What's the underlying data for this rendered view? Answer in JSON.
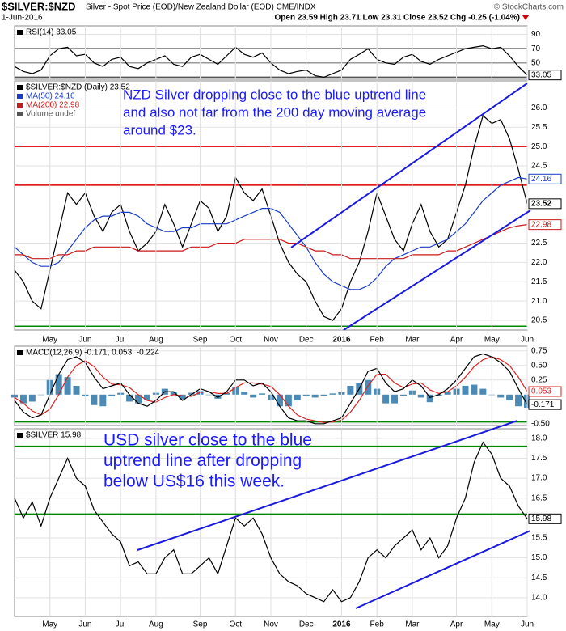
{
  "header": {
    "symbol": "$SILVER:$NZD",
    "description": "Silver - Spot Price (EOD)/New Zealand Dollar (EOD) CME/INDX",
    "credit": "© StockCharts.com",
    "date": "1-Jun-2016",
    "quote": "Open 23.59 High 23.71 Low 23.31 Close 23.52 Chg -0.25 (-1.04%)"
  },
  "chart_data": [
    {
      "type": "line",
      "legend": [
        {
          "text": "RSI(14) 33.05",
          "color": "#000000"
        }
      ],
      "ylim": [
        27,
        102
      ],
      "yticks": [
        90,
        70,
        50
      ],
      "grid": true,
      "hlines": [
        {
          "value": 70,
          "color": "#555555"
        },
        {
          "value": 50,
          "color": "#999999"
        },
        {
          "value": 30,
          "color": "#555555"
        }
      ],
      "series": [
        {
          "color": "#000000",
          "tag": true,
          "values": [
            45,
            38,
            35,
            40,
            60,
            70,
            72,
            60,
            62,
            50,
            45,
            55,
            58,
            45,
            42,
            50,
            55,
            60,
            48,
            45,
            58,
            62,
            55,
            48,
            60,
            72,
            62,
            58,
            64,
            50,
            40,
            35,
            38,
            40,
            32,
            30,
            35,
            40,
            55,
            62,
            70,
            55,
            50,
            48,
            58,
            62,
            52,
            48,
            55,
            60,
            65,
            70,
            72,
            74,
            70,
            72,
            60,
            45,
            33.05
          ]
        }
      ]
    },
    {
      "type": "line",
      "legend": [
        {
          "text": "$SILVER:$NZD (Daily) 23.52",
          "color": "#000000"
        },
        {
          "text": "MA(50) 24.16",
          "color": "#1a3cc8"
        },
        {
          "text": "MA(200) 22.98",
          "color": "#c81a1a"
        },
        {
          "text": "Volume undef",
          "color": "#555555"
        }
      ],
      "annotation": [
        "NZD Silver dropping close to the blue uptrend line",
        "and also not far from the 200 day moving average",
        "around $23."
      ],
      "categories": [
        null,
        null,
        null,
        null,
        "May",
        null,
        null,
        null,
        "Jun",
        null,
        null,
        null,
        "Jul",
        null,
        null,
        null,
        "Aug",
        null,
        null,
        null,
        null,
        "Sep",
        null,
        null,
        null,
        "Oct",
        null,
        null,
        null,
        "Nov",
        null,
        null,
        null,
        "Dec",
        null,
        null,
        null,
        "2016",
        null,
        null,
        null,
        "Feb",
        null,
        null,
        null,
        "Mar",
        null,
        null,
        null,
        null,
        "Apr",
        null,
        null,
        null,
        "May",
        null,
        null,
        null,
        "Jun"
      ],
      "ylim": [
        20.25,
        26.7
      ],
      "yticks": [
        {
          "value": 26,
          "label": "26.0"
        },
        {
          "value": 25.5,
          "label": "25.5"
        },
        {
          "value": 25,
          "label": "25.0"
        },
        {
          "value": 24.5,
          "label": "24.5"
        },
        {
          "value": 22.5,
          "label": "22.5"
        },
        {
          "value": 22,
          "label": "22.0"
        },
        {
          "value": 21.5,
          "label": "21.5"
        },
        {
          "value": 21,
          "label": "21.0"
        },
        {
          "value": 20.5,
          "label": "20.5"
        }
      ],
      "grid": true,
      "hlines": [
        {
          "value": 25,
          "color": "#dd0000"
        },
        {
          "value": 24,
          "color": "#dd0000"
        },
        {
          "value": 20.35,
          "color": "#008800"
        }
      ],
      "series": [
        {
          "color": "#000000",
          "tag": true,
          "values": [
            21.8,
            21.5,
            21.0,
            20.8,
            21.8,
            22.8,
            23.8,
            23.5,
            23.8,
            23.2,
            22.8,
            23.3,
            23.5,
            22.8,
            22.3,
            22.5,
            22.8,
            23.5,
            23.0,
            22.4,
            23.0,
            23.6,
            23.4,
            22.8,
            23.2,
            24.2,
            23.8,
            23.6,
            23.9,
            23.2,
            22.5,
            22.0,
            21.7,
            21.5,
            21.0,
            20.6,
            20.5,
            20.8,
            21.5,
            22.0,
            22.8,
            23.8,
            23.2,
            22.6,
            22.3,
            23.0,
            23.5,
            22.8,
            22.4,
            22.6,
            23.3,
            24.0,
            25.0,
            25.8,
            25.6,
            25.7,
            25.2,
            24.4,
            23.52
          ]
        },
        {
          "color": "#1a3cc8",
          "tag": true,
          "values": [
            22.4,
            22.2,
            22.0,
            21.9,
            21.9,
            22.0,
            22.3,
            22.6,
            22.9,
            23.1,
            23.2,
            23.2,
            23.3,
            23.3,
            23.2,
            23.0,
            22.9,
            22.8,
            22.8,
            22.9,
            22.9,
            23.0,
            23.0,
            23.0,
            23.0,
            23.1,
            23.2,
            23.3,
            23.4,
            23.4,
            23.3,
            23.0,
            22.7,
            22.4,
            22.0,
            21.7,
            21.5,
            21.4,
            21.3,
            21.3,
            21.4,
            21.6,
            21.9,
            22.1,
            22.2,
            22.3,
            22.4,
            22.4,
            22.5,
            22.6,
            22.8,
            23.0,
            23.3,
            23.6,
            23.8,
            24.0,
            24.1,
            24.2,
            24.16
          ]
        },
        {
          "color": "#c81a1a",
          "tag": true,
          "values": [
            22.2,
            22.2,
            22.1,
            22.1,
            22.1,
            22.2,
            22.2,
            22.3,
            22.3,
            22.4,
            22.4,
            22.4,
            22.4,
            22.4,
            22.3,
            22.3,
            22.3,
            22.3,
            22.3,
            22.3,
            22.4,
            22.4,
            22.4,
            22.5,
            22.5,
            22.5,
            22.6,
            22.6,
            22.6,
            22.6,
            22.6,
            22.5,
            22.5,
            22.4,
            22.3,
            22.3,
            22.2,
            22.2,
            22.1,
            22.1,
            22.1,
            22.1,
            22.1,
            22.1,
            22.1,
            22.2,
            22.2,
            22.2,
            22.2,
            22.3,
            22.3,
            22.4,
            22.5,
            22.6,
            22.7,
            22.8,
            22.9,
            22.95,
            22.98
          ]
        }
      ]
    },
    {
      "type": "line",
      "legend": [
        {
          "text": "MACD(12,26,9) -0.171, 0.053, -0.224",
          "color": "#000000"
        }
      ],
      "ylim": [
        -0.53,
        0.83
      ],
      "yticks": [
        {
          "value": 0.75,
          "label": "0.75"
        },
        {
          "value": 0.5,
          "label": "0.50"
        },
        {
          "value": 0.25,
          "label": "0.25"
        },
        {
          "value": -0.5,
          "label": "-0.50"
        }
      ],
      "grid": true,
      "hlines": [
        {
          "value": -0.47,
          "color": "#008800"
        }
      ],
      "series": [
        {
          "color": "#4a8ab5",
          "kind": "bar",
          "values": [
            -0.05,
            -0.15,
            -0.12,
            0.0,
            0.25,
            0.35,
            0.3,
            0.15,
            -0.03,
            -0.18,
            -0.2,
            -0.03,
            0.03,
            -0.12,
            -0.15,
            -0.1,
            0.03,
            0.1,
            0.05,
            -0.08,
            0.03,
            0.06,
            0.0,
            -0.07,
            0.03,
            0.13,
            0.05,
            -0.05,
            0.02,
            -0.09,
            -0.2,
            -0.2,
            -0.1,
            -0.03,
            -0.05,
            -0.02,
            0.02,
            0.04,
            0.15,
            0.2,
            0.25,
            0.1,
            -0.15,
            -0.15,
            -0.02,
            0.07,
            -0.05,
            -0.13,
            -0.02,
            0.05,
            0.1,
            0.15,
            0.17,
            0.1,
            0.0,
            -0.05,
            -0.1,
            -0.2,
            -0.224
          ]
        },
        {
          "color": "#dd2222",
          "tag": true,
          "values": [
            -0.05,
            -0.15,
            -0.28,
            -0.35,
            -0.25,
            0.0,
            0.3,
            0.5,
            0.58,
            0.48,
            0.3,
            0.18,
            0.17,
            0.12,
            0.0,
            -0.1,
            -0.13,
            -0.05,
            0.0,
            -0.02,
            -0.03,
            0.04,
            0.05,
            0.02,
            0.02,
            0.12,
            0.2,
            0.2,
            0.18,
            0.14,
            0.0,
            -0.2,
            -0.35,
            -0.42,
            -0.45,
            -0.48,
            -0.47,
            -0.44,
            -0.3,
            -0.1,
            0.15,
            0.35,
            0.35,
            0.2,
            0.12,
            0.18,
            0.2,
            0.08,
            0.02,
            0.05,
            0.15,
            0.3,
            0.48,
            0.6,
            0.65,
            0.6,
            0.5,
            0.3,
            0.053
          ]
        },
        {
          "color": "#000000",
          "tag": true,
          "values": [
            -0.1,
            -0.3,
            -0.4,
            -0.35,
            0.0,
            0.35,
            0.6,
            0.65,
            0.55,
            0.3,
            0.1,
            0.15,
            0.2,
            0.0,
            -0.15,
            -0.2,
            -0.1,
            0.05,
            0.05,
            -0.1,
            0.0,
            0.1,
            0.05,
            -0.05,
            0.05,
            0.25,
            0.25,
            0.15,
            0.2,
            0.05,
            -0.2,
            -0.4,
            -0.45,
            -0.45,
            -0.5,
            -0.5,
            -0.45,
            -0.4,
            -0.15,
            0.1,
            0.4,
            0.45,
            0.2,
            0.05,
            0.1,
            0.25,
            0.15,
            -0.05,
            0.0,
            0.1,
            0.25,
            0.45,
            0.65,
            0.7,
            0.65,
            0.55,
            0.4,
            0.1,
            -0.171
          ]
        }
      ]
    },
    {
      "type": "line",
      "legend": [
        {
          "text": "$SILVER 15.98",
          "color": "#000000"
        }
      ],
      "annotation": [
        "USD silver close to the blue",
        "uptrend line after dropping",
        "below US$16 this week."
      ],
      "categories": [
        null,
        null,
        null,
        null,
        "May",
        null,
        null,
        null,
        "Jun",
        null,
        null,
        null,
        "Jul",
        null,
        null,
        null,
        "Aug",
        null,
        null,
        null,
        null,
        "Sep",
        null,
        null,
        null,
        "Oct",
        null,
        null,
        null,
        "Nov",
        null,
        null,
        null,
        "Dec",
        null,
        null,
        null,
        "2016",
        null,
        null,
        null,
        "Feb",
        null,
        null,
        null,
        "Mar",
        null,
        null,
        null,
        null,
        "Apr",
        null,
        null,
        null,
        "May",
        null,
        null,
        null,
        "Jun"
      ],
      "ylim": [
        13.53,
        18.24
      ],
      "yticks": [
        {
          "value": 18,
          "label": "18.0"
        },
        {
          "value": 17.5,
          "label": "17.5"
        },
        {
          "value": 17,
          "label": "17.0"
        },
        {
          "value": 16.5,
          "label": "16.5"
        },
        {
          "value": 15.5,
          "label": "15.5"
        },
        {
          "value": 15,
          "label": "15.0"
        },
        {
          "value": 14.5,
          "label": "14.5"
        },
        {
          "value": 14,
          "label": "14.0"
        }
      ],
      "grid": true,
      "hlines": [
        {
          "value": 17.8,
          "color": "#008800"
        },
        {
          "value": 16.1,
          "color": "#008800"
        }
      ],
      "series": [
        {
          "color": "#000000",
          "tag": true,
          "values": [
            16.5,
            16.0,
            16.4,
            15.8,
            16.5,
            17.0,
            17.5,
            17.0,
            16.8,
            16.2,
            15.9,
            15.6,
            15.4,
            14.8,
            14.9,
            14.6,
            14.6,
            15.0,
            15.2,
            14.6,
            14.6,
            14.8,
            15.0,
            14.6,
            15.3,
            16.0,
            15.8,
            16.0,
            15.6,
            15.0,
            14.6,
            14.4,
            14.3,
            14.1,
            14.0,
            13.9,
            14.2,
            13.9,
            14.0,
            14.4,
            15.0,
            15.2,
            15.0,
            15.3,
            15.5,
            15.7,
            15.2,
            15.5,
            15.0,
            15.3,
            16.0,
            16.5,
            17.4,
            17.9,
            17.6,
            17.0,
            16.8,
            16.3,
            15.98
          ]
        }
      ]
    }
  ]
}
